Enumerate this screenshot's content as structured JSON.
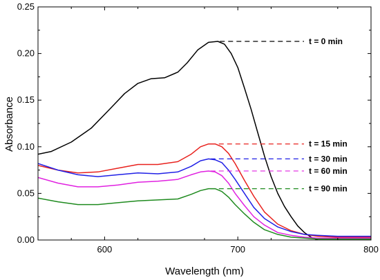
{
  "chart_data": {
    "type": "line",
    "xlabel": "Wavelength (nm)",
    "ylabel": "Absorbance",
    "xlim": [
      550,
      800
    ],
    "ylim": [
      0,
      0.25
    ],
    "x_ticks": [
      600,
      700,
      800
    ],
    "y_ticks": [
      0.0,
      0.05,
      0.1,
      0.15,
      0.2,
      0.25
    ],
    "x_tick_labels": [
      "600",
      "700",
      "800"
    ],
    "y_tick_labels": [
      "0.00",
      "0.05",
      "0.10",
      "0.15",
      "0.20",
      "0.25"
    ],
    "grid": false,
    "series": [
      {
        "name": "t = 0 min",
        "color": "#000000",
        "label_y": 0.213,
        "x": [
          550,
          560,
          575,
          590,
          605,
          615,
          625,
          635,
          645,
          655,
          662,
          670,
          678,
          685,
          690,
          695,
          700,
          705,
          710,
          715,
          720,
          725,
          730,
          735,
          740,
          745,
          750,
          755,
          760,
          765,
          770
        ],
        "y": [
          0.092,
          0.095,
          0.105,
          0.12,
          0.142,
          0.157,
          0.168,
          0.173,
          0.174,
          0.18,
          0.19,
          0.204,
          0.212,
          0.213,
          0.21,
          0.2,
          0.185,
          0.163,
          0.14,
          0.115,
          0.09,
          0.068,
          0.05,
          0.036,
          0.025,
          0.015,
          0.008,
          0.003,
          0.0,
          -0.002,
          -0.004
        ]
      },
      {
        "name": "t = 15 min",
        "color": "#e8201c",
        "label_y": 0.103,
        "x": [
          550,
          565,
          580,
          595,
          610,
          625,
          640,
          655,
          665,
          672,
          678,
          683,
          688,
          693,
          698,
          705,
          712,
          720,
          730,
          740,
          750,
          760,
          775,
          790,
          800
        ],
        "y": [
          0.08,
          0.075,
          0.072,
          0.073,
          0.077,
          0.081,
          0.081,
          0.084,
          0.092,
          0.1,
          0.103,
          0.103,
          0.1,
          0.093,
          0.082,
          0.064,
          0.047,
          0.03,
          0.017,
          0.01,
          0.006,
          0.004,
          0.003,
          0.003,
          0.003
        ]
      },
      {
        "name": "t = 30 min",
        "color": "#1f1fe6",
        "label_y": 0.087,
        "x": [
          550,
          565,
          580,
          595,
          610,
          625,
          640,
          655,
          665,
          672,
          678,
          683,
          688,
          693,
          698,
          705,
          712,
          720,
          730,
          740,
          750,
          760,
          775,
          790,
          800
        ],
        "y": [
          0.082,
          0.075,
          0.07,
          0.068,
          0.07,
          0.072,
          0.071,
          0.073,
          0.079,
          0.085,
          0.087,
          0.086,
          0.083,
          0.075,
          0.065,
          0.05,
          0.035,
          0.023,
          0.014,
          0.009,
          0.006,
          0.005,
          0.004,
          0.004,
          0.004
        ]
      },
      {
        "name": "t = 60 min",
        "color": "#e020e0",
        "label_y": 0.074,
        "x": [
          550,
          565,
          580,
          595,
          610,
          625,
          640,
          655,
          665,
          672,
          678,
          683,
          688,
          693,
          698,
          705,
          712,
          720,
          730,
          740,
          750,
          760,
          775,
          790,
          800
        ],
        "y": [
          0.067,
          0.061,
          0.057,
          0.057,
          0.059,
          0.062,
          0.063,
          0.065,
          0.07,
          0.073,
          0.074,
          0.073,
          0.069,
          0.061,
          0.05,
          0.037,
          0.025,
          0.016,
          0.008,
          0.005,
          0.003,
          0.002,
          0.002,
          0.002,
          0.002
        ]
      },
      {
        "name": "t = 90 min",
        "color": "#1e8a1e",
        "label_y": 0.055,
        "x": [
          550,
          565,
          580,
          595,
          610,
          625,
          640,
          655,
          665,
          672,
          678,
          683,
          688,
          693,
          698,
          705,
          712,
          720,
          730,
          740,
          750,
          760,
          775,
          790,
          800
        ],
        "y": [
          0.045,
          0.041,
          0.038,
          0.038,
          0.04,
          0.042,
          0.043,
          0.044,
          0.049,
          0.053,
          0.055,
          0.055,
          0.052,
          0.046,
          0.038,
          0.028,
          0.019,
          0.011,
          0.006,
          0.003,
          0.002,
          0.001,
          0.001,
          0.001,
          0.001
        ]
      }
    ]
  }
}
